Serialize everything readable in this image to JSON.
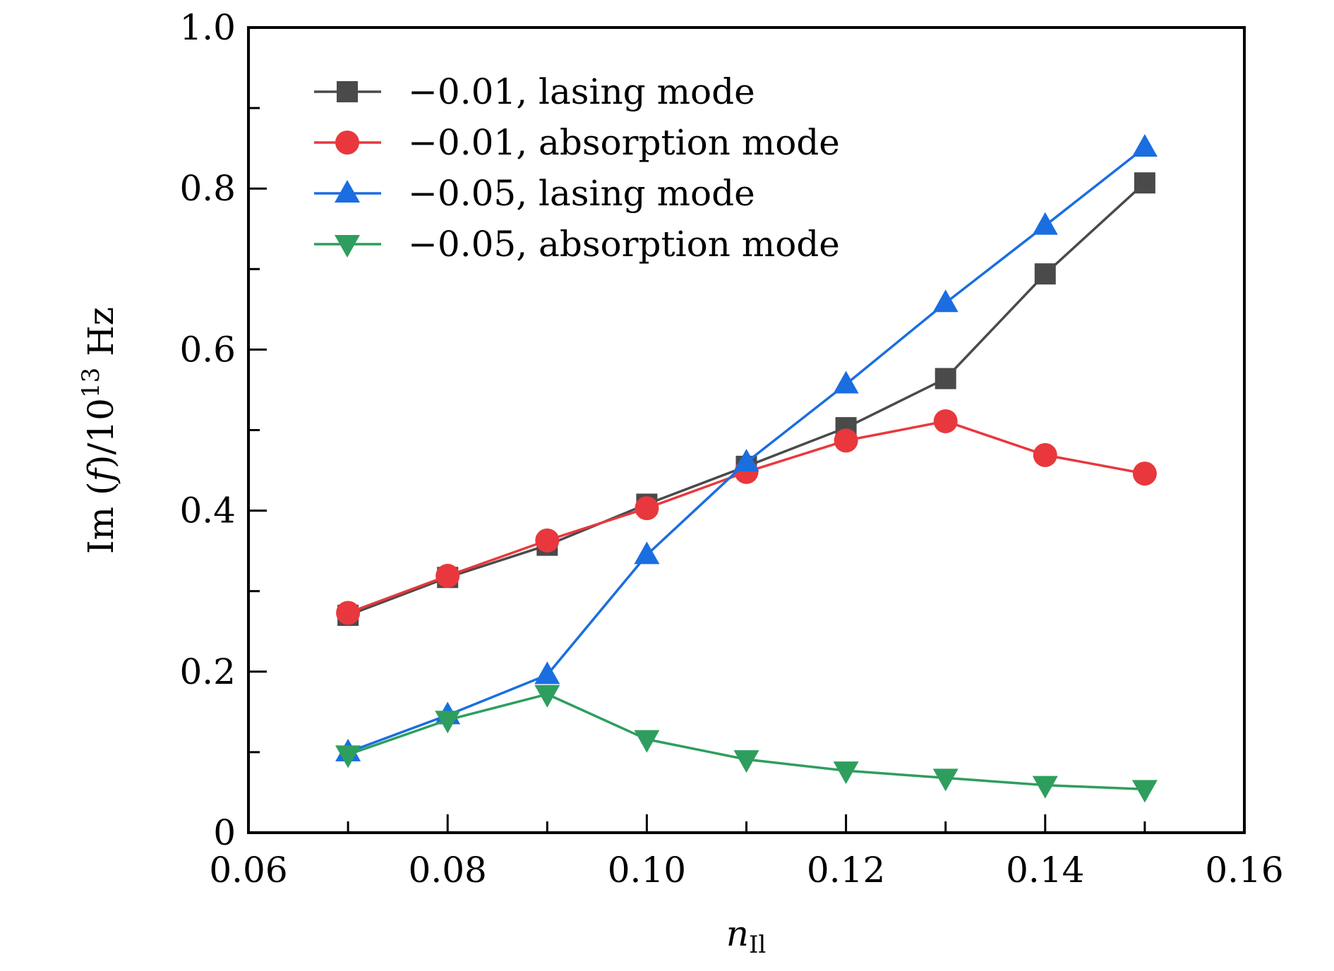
{
  "chart_data": {
    "type": "line",
    "title": "",
    "xlabel": {
      "main": "n",
      "sub": "Il"
    },
    "ylabel": {
      "prefix": "Im (",
      "var": "f",
      "mid": ")/10",
      "sup": "13",
      "suffix": " Hz"
    },
    "xlim": [
      0.06,
      0.16
    ],
    "ylim": [
      0,
      1.0
    ],
    "xticks": [
      0.06,
      0.08,
      0.1,
      0.12,
      0.14,
      0.16
    ],
    "xtick_labels": [
      "0.06",
      "0.08",
      "0.10",
      "0.12",
      "0.14",
      "0.16"
    ],
    "yticks": [
      0,
      0.2,
      0.4,
      0.6,
      0.8,
      1.0
    ],
    "ytick_labels": [
      "0",
      "0.2",
      "0.4",
      "0.6",
      "0.8",
      "1.0"
    ],
    "grid": false,
    "legend_position": "top-left",
    "x": [
      0.07,
      0.08,
      0.09,
      0.1,
      0.11,
      0.12,
      0.13,
      0.14,
      0.15
    ],
    "series": [
      {
        "name": "−0.01, lasing mode",
        "marker": "square",
        "color": "#4a4a4a",
        "values": [
          0.27,
          0.317,
          0.357,
          0.408,
          0.455,
          0.503,
          0.564,
          0.694,
          0.807
        ]
      },
      {
        "name": "−0.01, absorption mode",
        "marker": "circle",
        "color": "#e8383d",
        "values": [
          0.273,
          0.319,
          0.363,
          0.403,
          0.448,
          0.487,
          0.511,
          0.469,
          0.446
        ]
      },
      {
        "name": "−0.05, lasing mode",
        "marker": "triangle-up",
        "color": "#1a6ee0",
        "values": [
          0.1,
          0.146,
          0.196,
          0.345,
          0.46,
          0.557,
          0.658,
          0.754,
          0.851
        ]
      },
      {
        "name": "−0.05, absorption mode",
        "marker": "triangle-down",
        "color": "#2e9e5e",
        "values": [
          0.097,
          0.14,
          0.172,
          0.116,
          0.091,
          0.077,
          0.068,
          0.059,
          0.054
        ]
      }
    ]
  }
}
